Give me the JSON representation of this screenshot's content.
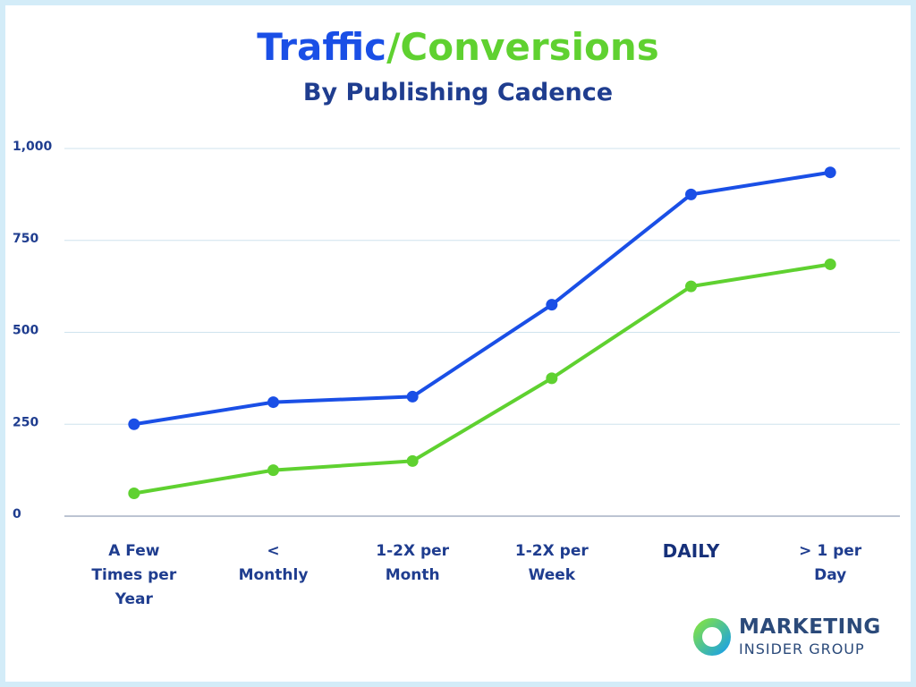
{
  "chart_data": {
    "type": "line",
    "title_parts": [
      {
        "text": "Traffic",
        "color": "#1a4fe6"
      },
      {
        "text": "/Conversions",
        "color": "#5fd130"
      }
    ],
    "subtitle": "By Publishing Cadence",
    "categories": [
      "A Few Times per Year",
      "< Monthly",
      "1-2X per Month",
      "1-2X per Week",
      "DAILY",
      "> 1 per Day"
    ],
    "emphasized_category_index": 4,
    "series": [
      {
        "color": "#1a4fe6",
        "values": [
          250,
          310,
          325,
          575,
          875,
          935
        ]
      },
      {
        "color": "#5fd130",
        "values": [
          62,
          125,
          150,
          375,
          625,
          685
        ]
      }
    ],
    "ylim": [
      0,
      1000
    ],
    "yticks": [
      0,
      250,
      500,
      750,
      {
        "value": 1000,
        "label": "1,000"
      }
    ],
    "grid": true
  },
  "logo": {
    "line1": "MARKETING",
    "line2": "INSIDER GROUP"
  }
}
